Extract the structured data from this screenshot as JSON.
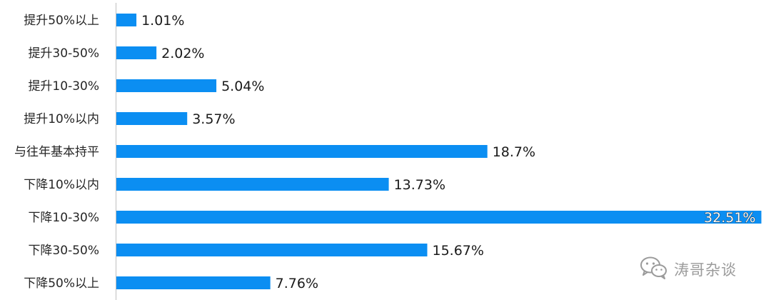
{
  "chart_data": {
    "type": "bar",
    "orientation": "horizontal",
    "categories": [
      "提升50%以上",
      "提升30-50%",
      "提升10-30%",
      "提升10%以内",
      "与往年基本持平",
      "下降10%以内",
      "下降10-30%",
      "下降30-50%",
      "下降50%以上"
    ],
    "values": [
      1.01,
      2.02,
      5.04,
      3.57,
      18.7,
      13.73,
      32.51,
      15.67,
      7.76
    ],
    "value_labels": [
      "1.01%",
      "2.02%",
      "5.04%",
      "3.57%",
      "18.7%",
      "13.73%",
      "32.51%",
      "15.67%",
      "7.76%"
    ],
    "xlim": [
      0,
      32.6
    ],
    "bar_color": "#0b8ef2",
    "axis_color": "#bfbfbf",
    "grid": false,
    "legend": "none"
  },
  "watermark": {
    "text": "涛哥杂谈",
    "icon": "wechat-icon"
  }
}
